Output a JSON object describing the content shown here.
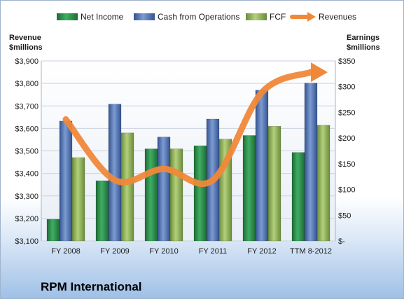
{
  "chart_data": {
    "type": "bar",
    "title": "RPM International",
    "categories": [
      "FY 2008",
      "FY 2009",
      "FY 2010",
      "FY 2011",
      "FY 2012",
      "TTM 8-2012"
    ],
    "ylabel_left": "Revenue\n$millions",
    "ylabel_right": "Earnings\n$millions",
    "left_axis": {
      "ylim": [
        3100,
        3900
      ],
      "ticks": [
        3100,
        3200,
        3300,
        3400,
        3500,
        3600,
        3700,
        3800,
        3900
      ],
      "tick_labels": [
        "$3,100",
        "$3,200",
        "$3,300",
        "$3,400",
        "$3,500",
        "$3,600",
        "$3,700",
        "$3,800",
        "$3,900"
      ]
    },
    "right_axis": {
      "ylim": [
        0,
        350
      ],
      "ticks": [
        0,
        50,
        100,
        150,
        200,
        250,
        300,
        350
      ],
      "tick_labels": [
        "$-",
        "$50",
        "$100",
        "$150",
        "$200",
        "$250",
        "$300",
        "$350"
      ]
    },
    "series": [
      {
        "name": "Net Income",
        "type": "bar",
        "axis": "right",
        "color": "#2e8b4a",
        "values": [
          42,
          117,
          179,
          185,
          205,
          172
        ]
      },
      {
        "name": "Cash from Operations",
        "type": "bar",
        "axis": "right",
        "color": "#4f74b8",
        "values": [
          233,
          266,
          202,
          237,
          293,
          307
        ]
      },
      {
        "name": "FCF",
        "type": "bar",
        "axis": "right",
        "color": "#8fb35c",
        "values": [
          162,
          210,
          179,
          198,
          223,
          225
        ]
      },
      {
        "name": "Revenues",
        "type": "line",
        "axis": "left",
        "color": "#f0883a",
        "values": [
          3640,
          3370,
          3420,
          3370,
          3760,
          3850
        ]
      }
    ],
    "legend_position": "top",
    "grid": true
  }
}
